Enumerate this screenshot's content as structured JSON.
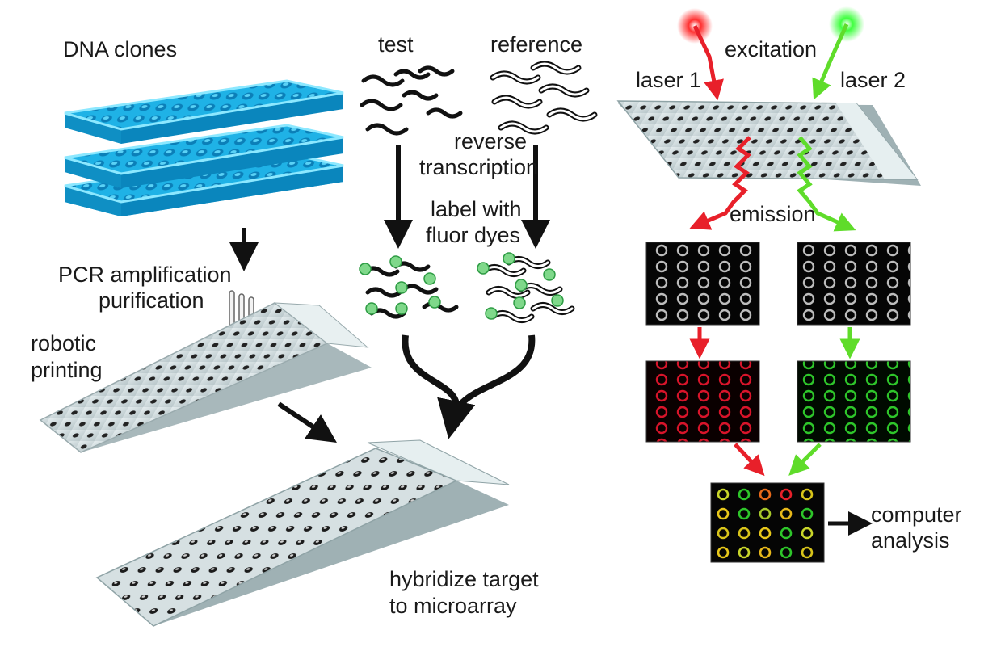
{
  "labels": {
    "dna_clones": "DNA clones",
    "pcr_line1": "PCR amplification",
    "pcr_line2": "purification",
    "robotic_line1": "robotic",
    "robotic_line2": "printing",
    "test": "test",
    "reference": "reference",
    "rt_line1": "reverse",
    "rt_line2": "transcription",
    "label_line1": "label with",
    "label_line2": "fluor dyes",
    "hyb_line1": "hybridize target",
    "hyb_line2": "to microarray",
    "excitation": "excitation",
    "laser1": "laser 1",
    "laser2": "laser 2",
    "emission": "emission",
    "computer_line1": "computer",
    "computer_line2": "analysis"
  },
  "colors": {
    "plate_blue": "#22b8e8",
    "plate_edge": "#7fe0ff",
    "laser_red": "#e8202a",
    "laser_green": "#5fdc2a",
    "dye_green": "#7fd88a",
    "slide": "#c9d6d8"
  }
}
